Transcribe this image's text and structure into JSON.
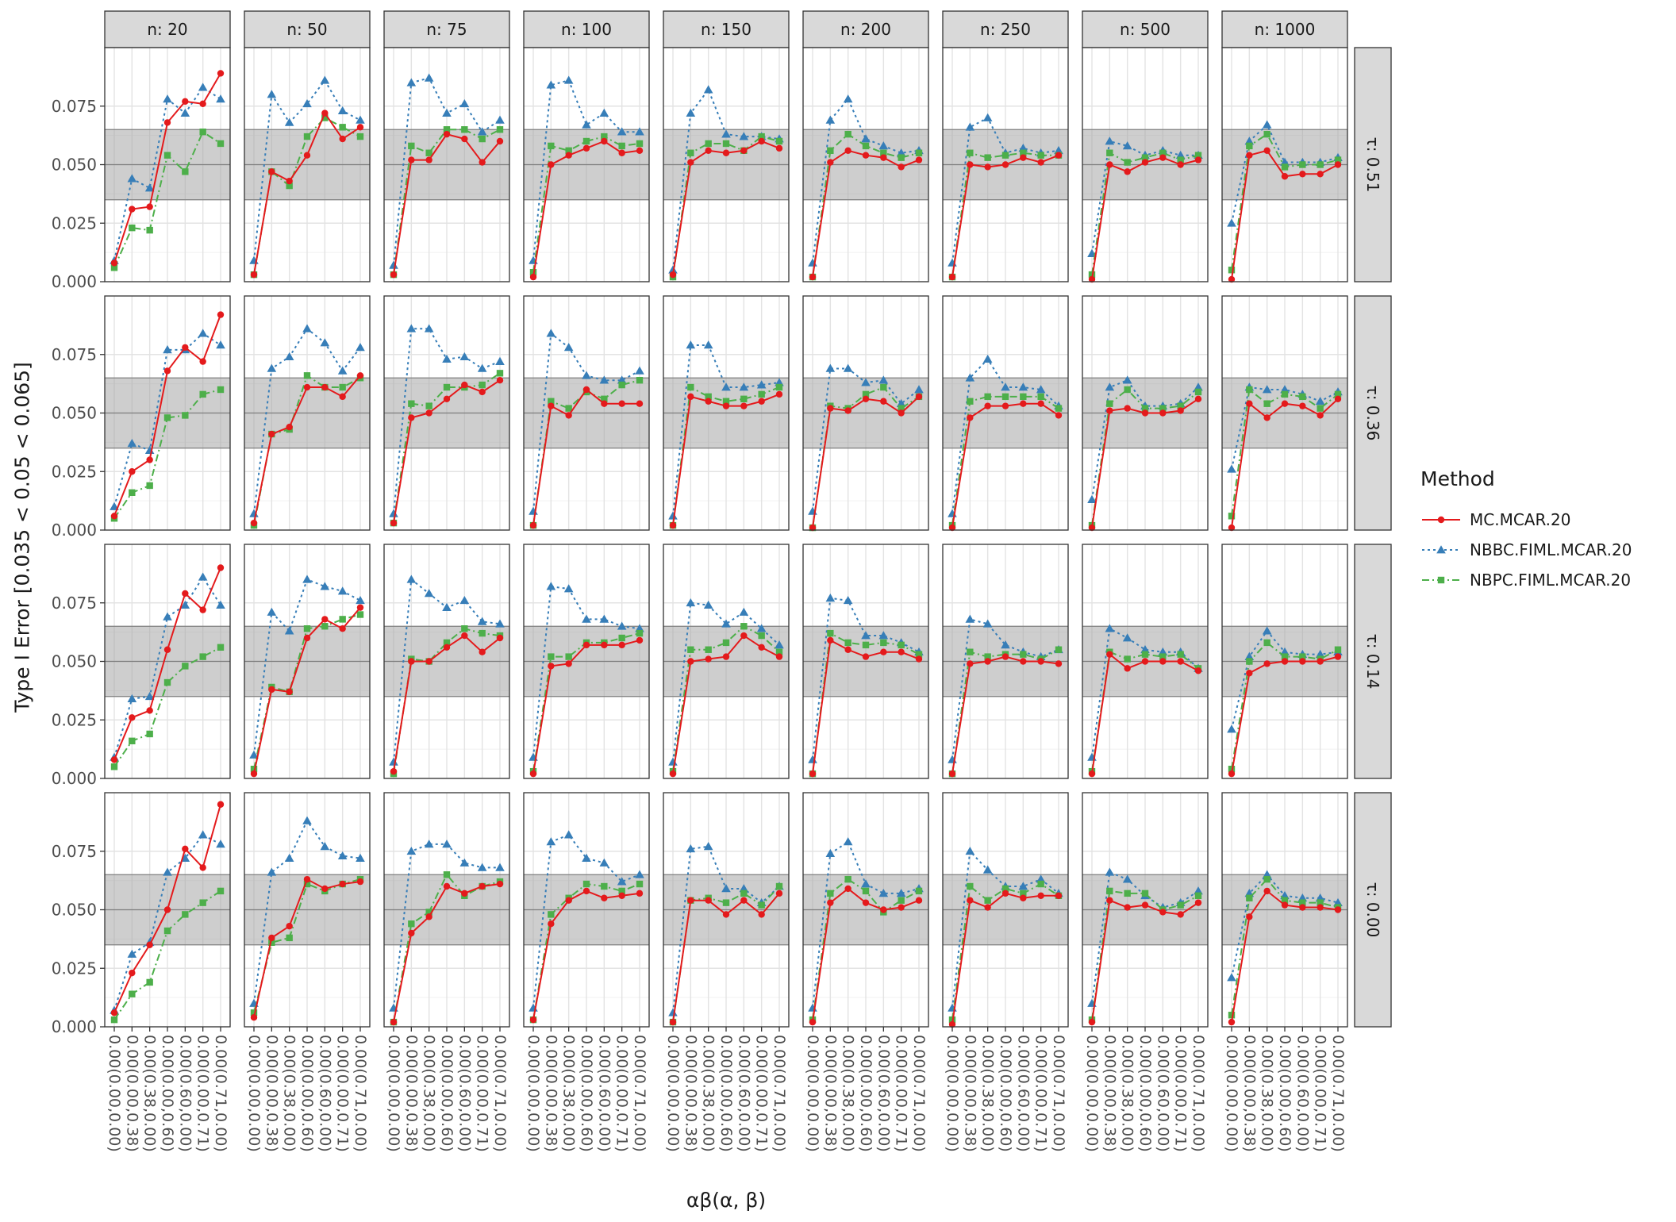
{
  "chart_data": {
    "type": "line",
    "ylabel": "Type I Error [0.035 < 0.05 < 0.065]",
    "xlabel": "αβ(α, β)",
    "ylim": [
      0,
      0.1
    ],
    "y_ticks": [
      "0.000",
      "0.025",
      "0.050",
      "0.075"
    ],
    "y_tick_values": [
      0,
      0.025,
      0.05,
      0.075
    ],
    "band": {
      "low": 0.035,
      "high": 0.065,
      "line": 0.05
    },
    "grid": true,
    "x_categories": [
      "0.00(0.00,0.00)",
      "0.00(0.00,0.38)",
      "0.00(0.38,0.00)",
      "0.00(0.00,0.60)",
      "0.00(0.60,0.00)",
      "0.00(0.00,0.71)",
      "0.00(0.71,0.00)"
    ],
    "col_facets": [
      "n: 20",
      "n: 50",
      "n: 75",
      "n: 100",
      "n: 150",
      "n: 200",
      "n: 250",
      "n: 500",
      "n: 1000"
    ],
    "row_facets": [
      "τ: 0.51",
      "τ: 0.36",
      "τ: 0.14",
      "τ: 0.00"
    ],
    "legend": {
      "title": "Method",
      "position": "right",
      "entries": [
        "MC.MCAR.20",
        "NBBC.FIML.MCAR.20",
        "NBPC.FIML.MCAR.20"
      ]
    },
    "series_styles": [
      {
        "name": "MC.MCAR.20",
        "color": "#e41a1c",
        "marker": "circle",
        "dash": "solid"
      },
      {
        "name": "NBBC.FIML.MCAR.20",
        "color": "#377eb8",
        "marker": "triangle",
        "dash": "dotted"
      },
      {
        "name": "NBPC.FIML.MCAR.20",
        "color": "#4daf4a",
        "marker": "square",
        "dash": "dashdot"
      }
    ],
    "panels": [
      [
        {
          "MC": [
            0.008,
            0.031,
            0.032,
            0.068,
            0.077,
            0.076,
            0.089
          ],
          "NBBC": [
            0.009,
            0.044,
            0.04,
            0.078,
            0.072,
            0.083,
            0.078
          ],
          "NBPC": [
            0.006,
            0.023,
            0.022,
            0.054,
            0.047,
            0.064,
            0.059
          ]
        },
        {
          "MC": [
            0.003,
            0.047,
            0.043,
            0.054,
            0.072,
            0.061,
            0.066
          ],
          "NBBC": [
            0.009,
            0.08,
            0.068,
            0.076,
            0.086,
            0.073,
            0.069
          ],
          "NBPC": [
            0.003,
            0.047,
            0.041,
            0.062,
            0.07,
            0.066,
            0.062
          ]
        },
        {
          "MC": [
            0.003,
            0.052,
            0.052,
            0.063,
            0.061,
            0.051,
            0.06
          ],
          "NBBC": [
            0.007,
            0.085,
            0.087,
            0.072,
            0.076,
            0.064,
            0.069
          ],
          "NBPC": [
            0.003,
            0.058,
            0.055,
            0.065,
            0.065,
            0.061,
            0.065
          ]
        },
        {
          "MC": [
            0.002,
            0.05,
            0.054,
            0.057,
            0.06,
            0.055,
            0.056
          ],
          "NBBC": [
            0.009,
            0.084,
            0.086,
            0.067,
            0.072,
            0.064,
            0.064
          ],
          "NBPC": [
            0.004,
            0.058,
            0.056,
            0.06,
            0.062,
            0.058,
            0.059
          ]
        },
        {
          "MC": [
            0.003,
            0.051,
            0.056,
            0.055,
            0.056,
            0.06,
            0.057
          ],
          "NBBC": [
            0.005,
            0.072,
            0.082,
            0.063,
            0.062,
            0.062,
            0.061
          ],
          "NBPC": [
            0.002,
            0.055,
            0.059,
            0.059,
            0.056,
            0.062,
            0.06
          ]
        },
        {
          "MC": [
            0.002,
            0.051,
            0.056,
            0.054,
            0.053,
            0.049,
            0.052
          ],
          "NBBC": [
            0.008,
            0.069,
            0.078,
            0.061,
            0.058,
            0.055,
            0.056
          ],
          "NBPC": [
            0.002,
            0.056,
            0.063,
            0.058,
            0.055,
            0.053,
            0.055
          ]
        },
        {
          "MC": [
            0.002,
            0.05,
            0.049,
            0.05,
            0.053,
            0.051,
            0.054
          ],
          "NBBC": [
            0.008,
            0.066,
            0.07,
            0.055,
            0.057,
            0.055,
            0.056
          ],
          "NBPC": [
            0.002,
            0.055,
            0.053,
            0.054,
            0.055,
            0.054,
            0.054
          ]
        },
        {
          "MC": [
            0.001,
            0.05,
            0.047,
            0.051,
            0.053,
            0.05,
            0.052
          ],
          "NBBC": [
            0.012,
            0.06,
            0.058,
            0.054,
            0.056,
            0.054,
            0.054
          ],
          "NBPC": [
            0.003,
            0.055,
            0.051,
            0.053,
            0.055,
            0.052,
            0.054
          ]
        },
        {
          "MC": [
            0.001,
            0.054,
            0.056,
            0.045,
            0.046,
            0.046,
            0.05
          ],
          "NBBC": [
            0.025,
            0.06,
            0.067,
            0.051,
            0.051,
            0.051,
            0.053
          ],
          "NBPC": [
            0.005,
            0.058,
            0.063,
            0.049,
            0.05,
            0.05,
            0.052
          ]
        }
      ],
      [
        {
          "MC": [
            0.006,
            0.025,
            0.03,
            0.068,
            0.078,
            0.072,
            0.092
          ],
          "NBBC": [
            0.01,
            0.037,
            0.034,
            0.077,
            0.077,
            0.084,
            0.079
          ],
          "NBPC": [
            0.005,
            0.016,
            0.019,
            0.048,
            0.049,
            0.058,
            0.06
          ]
        },
        {
          "MC": [
            0.003,
            0.041,
            0.044,
            0.061,
            0.061,
            0.057,
            0.066
          ],
          "NBBC": [
            0.007,
            0.069,
            0.074,
            0.086,
            0.08,
            0.068,
            0.078
          ],
          "NBPC": [
            0.002,
            0.041,
            0.043,
            0.066,
            0.061,
            0.061,
            0.065
          ]
        },
        {
          "MC": [
            0.003,
            0.048,
            0.05,
            0.056,
            0.062,
            0.059,
            0.064
          ],
          "NBBC": [
            0.007,
            0.086,
            0.086,
            0.073,
            0.074,
            0.069,
            0.072
          ],
          "NBPC": [
            0.003,
            0.054,
            0.053,
            0.061,
            0.061,
            0.062,
            0.067
          ]
        },
        {
          "MC": [
            0.002,
            0.053,
            0.049,
            0.06,
            0.054,
            0.054,
            0.054
          ],
          "NBBC": [
            0.008,
            0.084,
            0.078,
            0.066,
            0.064,
            0.064,
            0.068
          ],
          "NBPC": [
            0.002,
            0.055,
            0.052,
            0.059,
            0.056,
            0.062,
            0.064
          ]
        },
        {
          "MC": [
            0.002,
            0.057,
            0.055,
            0.053,
            0.053,
            0.055,
            0.058
          ],
          "NBBC": [
            0.006,
            0.079,
            0.079,
            0.061,
            0.061,
            0.062,
            0.063
          ],
          "NBPC": [
            0.002,
            0.061,
            0.057,
            0.055,
            0.056,
            0.058,
            0.061
          ]
        },
        {
          "MC": [
            0.001,
            0.052,
            0.051,
            0.056,
            0.055,
            0.05,
            0.057
          ],
          "NBBC": [
            0.008,
            0.069,
            0.069,
            0.063,
            0.064,
            0.054,
            0.06
          ],
          "NBPC": [
            0.001,
            0.053,
            0.052,
            0.058,
            0.061,
            0.052,
            0.057
          ]
        },
        {
          "MC": [
            0.001,
            0.048,
            0.053,
            0.053,
            0.054,
            0.054,
            0.049
          ],
          "NBBC": [
            0.007,
            0.065,
            0.073,
            0.061,
            0.061,
            0.06,
            0.053
          ],
          "NBPC": [
            0.002,
            0.055,
            0.057,
            0.057,
            0.057,
            0.057,
            0.052
          ]
        },
        {
          "MC": [
            0.001,
            0.051,
            0.052,
            0.05,
            0.05,
            0.051,
            0.056
          ],
          "NBBC": [
            0.013,
            0.061,
            0.064,
            0.053,
            0.053,
            0.054,
            0.061
          ],
          "NBPC": [
            0.002,
            0.054,
            0.06,
            0.052,
            0.052,
            0.053,
            0.059
          ]
        },
        {
          "MC": [
            0.001,
            0.054,
            0.048,
            0.054,
            0.053,
            0.049,
            0.056
          ],
          "NBBC": [
            0.026,
            0.061,
            0.06,
            0.06,
            0.058,
            0.055,
            0.059
          ],
          "NBPC": [
            0.006,
            0.06,
            0.054,
            0.058,
            0.057,
            0.052,
            0.058
          ]
        }
      ],
      [
        {
          "MC": [
            0.008,
            0.026,
            0.029,
            0.055,
            0.079,
            0.072,
            0.09
          ],
          "NBBC": [
            0.009,
            0.034,
            0.035,
            0.069,
            0.074,
            0.086,
            0.074
          ],
          "NBPC": [
            0.005,
            0.016,
            0.019,
            0.041,
            0.048,
            0.052,
            0.056
          ]
        },
        {
          "MC": [
            0.002,
            0.038,
            0.037,
            0.06,
            0.068,
            0.064,
            0.073
          ],
          "NBBC": [
            0.01,
            0.071,
            0.063,
            0.085,
            0.082,
            0.08,
            0.076
          ],
          "NBPC": [
            0.004,
            0.039,
            0.037,
            0.064,
            0.065,
            0.068,
            0.07
          ]
        },
        {
          "MC": [
            0.003,
            0.05,
            0.05,
            0.056,
            0.061,
            0.054,
            0.06
          ],
          "NBBC": [
            0.007,
            0.085,
            0.079,
            0.073,
            0.076,
            0.067,
            0.066
          ],
          "NBPC": [
            0.002,
            0.051,
            0.05,
            0.058,
            0.064,
            0.062,
            0.061
          ]
        },
        {
          "MC": [
            0.002,
            0.048,
            0.049,
            0.057,
            0.057,
            0.057,
            0.059
          ],
          "NBBC": [
            0.009,
            0.082,
            0.081,
            0.068,
            0.068,
            0.065,
            0.064
          ],
          "NBPC": [
            0.003,
            0.052,
            0.052,
            0.058,
            0.058,
            0.06,
            0.062
          ]
        },
        {
          "MC": [
            0.002,
            0.05,
            0.051,
            0.052,
            0.061,
            0.056,
            0.052
          ],
          "NBBC": [
            0.007,
            0.075,
            0.074,
            0.066,
            0.071,
            0.064,
            0.057
          ],
          "NBPC": [
            0.003,
            0.055,
            0.055,
            0.058,
            0.065,
            0.061,
            0.054
          ]
        },
        {
          "MC": [
            0.002,
            0.059,
            0.055,
            0.052,
            0.054,
            0.054,
            0.051
          ],
          "NBBC": [
            0.008,
            0.077,
            0.076,
            0.061,
            0.061,
            0.058,
            0.054
          ],
          "NBPC": [
            0.002,
            0.062,
            0.058,
            0.057,
            0.058,
            0.057,
            0.053
          ]
        },
        {
          "MC": [
            0.002,
            0.049,
            0.05,
            0.052,
            0.05,
            0.05,
            0.049
          ],
          "NBBC": [
            0.008,
            0.068,
            0.066,
            0.057,
            0.054,
            0.052,
            0.055
          ],
          "NBPC": [
            0.002,
            0.054,
            0.052,
            0.053,
            0.053,
            0.051,
            0.055
          ]
        },
        {
          "MC": [
            0.002,
            0.053,
            0.047,
            0.05,
            0.05,
            0.05,
            0.046
          ],
          "NBBC": [
            0.009,
            0.064,
            0.06,
            0.055,
            0.054,
            0.054,
            0.047
          ],
          "NBPC": [
            0.003,
            0.054,
            0.051,
            0.053,
            0.052,
            0.053,
            0.047
          ]
        },
        {
          "MC": [
            0.002,
            0.045,
            0.049,
            0.05,
            0.05,
            0.05,
            0.052
          ],
          "NBBC": [
            0.021,
            0.052,
            0.063,
            0.054,
            0.053,
            0.053,
            0.054
          ],
          "NBPC": [
            0.004,
            0.05,
            0.058,
            0.052,
            0.052,
            0.051,
            0.055
          ]
        }
      ],
      [
        {
          "MC": [
            0.006,
            0.023,
            0.035,
            0.05,
            0.076,
            0.068,
            0.095
          ],
          "NBBC": [
            0.007,
            0.031,
            0.036,
            0.066,
            0.072,
            0.082,
            0.078
          ],
          "NBPC": [
            0.003,
            0.014,
            0.019,
            0.041,
            0.048,
            0.053,
            0.058
          ]
        },
        {
          "MC": [
            0.004,
            0.038,
            0.043,
            0.063,
            0.059,
            0.061,
            0.062
          ],
          "NBBC": [
            0.01,
            0.066,
            0.072,
            0.088,
            0.077,
            0.073,
            0.072
          ],
          "NBPC": [
            0.006,
            0.036,
            0.038,
            0.061,
            0.058,
            0.061,
            0.063
          ]
        },
        {
          "MC": [
            0.002,
            0.04,
            0.047,
            0.06,
            0.057,
            0.06,
            0.061
          ],
          "NBBC": [
            0.008,
            0.075,
            0.078,
            0.078,
            0.07,
            0.068,
            0.068
          ],
          "NBPC": [
            0.002,
            0.044,
            0.049,
            0.065,
            0.056,
            0.06,
            0.062
          ]
        },
        {
          "MC": [
            0.003,
            0.044,
            0.054,
            0.058,
            0.055,
            0.056,
            0.057
          ],
          "NBBC": [
            0.008,
            0.079,
            0.082,
            0.072,
            0.07,
            0.062,
            0.065
          ],
          "NBPC": [
            0.003,
            0.048,
            0.055,
            0.061,
            0.06,
            0.058,
            0.061
          ]
        },
        {
          "MC": [
            0.002,
            0.054,
            0.054,
            0.048,
            0.054,
            0.048,
            0.057
          ],
          "NBBC": [
            0.006,
            0.076,
            0.077,
            0.059,
            0.059,
            0.053,
            0.06
          ],
          "NBPC": [
            0.002,
            0.054,
            0.055,
            0.053,
            0.057,
            0.052,
            0.06
          ]
        },
        {
          "MC": [
            0.002,
            0.053,
            0.059,
            0.053,
            0.05,
            0.051,
            0.054
          ],
          "NBBC": [
            0.008,
            0.074,
            0.079,
            0.061,
            0.057,
            0.057,
            0.059
          ],
          "NBPC": [
            0.003,
            0.057,
            0.063,
            0.058,
            0.049,
            0.054,
            0.058
          ]
        },
        {
          "MC": [
            0.001,
            0.054,
            0.051,
            0.057,
            0.055,
            0.056,
            0.056
          ],
          "NBBC": [
            0.008,
            0.075,
            0.067,
            0.06,
            0.06,
            0.063,
            0.057
          ],
          "NBPC": [
            0.003,
            0.06,
            0.054,
            0.059,
            0.057,
            0.061,
            0.056
          ]
        },
        {
          "MC": [
            0.002,
            0.054,
            0.051,
            0.052,
            0.049,
            0.048,
            0.053
          ],
          "NBBC": [
            0.01,
            0.066,
            0.063,
            0.056,
            0.051,
            0.053,
            0.058
          ],
          "NBPC": [
            0.003,
            0.058,
            0.057,
            0.057,
            0.05,
            0.052,
            0.056
          ]
        },
        {
          "MC": [
            0.002,
            0.047,
            0.058,
            0.052,
            0.051,
            0.051,
            0.05
          ],
          "NBBC": [
            0.021,
            0.057,
            0.065,
            0.056,
            0.055,
            0.055,
            0.053
          ],
          "NBPC": [
            0.005,
            0.055,
            0.063,
            0.054,
            0.053,
            0.053,
            0.051
          ]
        }
      ]
    ]
  }
}
